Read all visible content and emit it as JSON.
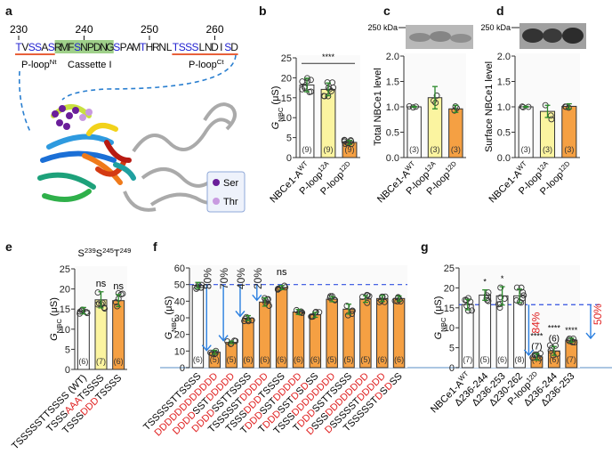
{
  "panel_labels": {
    "a": "a",
    "b": "b",
    "c": "c",
    "d": "d",
    "e": "e",
    "f": "f",
    "g": "g"
  },
  "panel_a": {
    "residue_numbers": [
      {
        "label": "230",
        "index": 0
      },
      {
        "label": "240",
        "index": 10
      },
      {
        "label": "250",
        "index": 20
      },
      {
        "label": "260",
        "index": 30
      }
    ],
    "sequence": "TVSSASRMFSNPDNGSPAMTHRNLTSSSLNDISD",
    "blue_positions": [
      0,
      2,
      3,
      5,
      9,
      15,
      19,
      24,
      25,
      26,
      27,
      32
    ],
    "cassette_range": [
      6,
      14
    ],
    "ploop_nt_range": [
      0,
      5
    ],
    "ploop_ct_range": [
      24,
      33
    ],
    "region_labels": {
      "ploop_nt": [
        {
          "t": "P-loop"
        },
        {
          "t": "Nt",
          "sup": true
        }
      ],
      "cassette": [
        {
          "t": "Cassette I"
        }
      ],
      "ploop_ct": [
        {
          "t": "P-loop"
        },
        {
          "t": "Ct",
          "sup": true
        }
      ]
    },
    "legend": [
      {
        "label": "Ser",
        "color": "#6a1e9a"
      },
      {
        "label": "Thr",
        "color": "#c89ae0"
      }
    ],
    "colors": {
      "blue": "#2020d0",
      "green_highlight": "#9fd08a",
      "underline": "#e8603a",
      "dash": "#2a7fd0"
    }
  },
  "blots": {
    "c": {
      "marker": "250 kDa"
    },
    "d": {
      "marker": "250 kDa"
    }
  },
  "colors": {
    "white_bar": "#ffffff",
    "yellow_bar": "#fbf4a0",
    "orange_bar": "#f5a043",
    "error": "#2b8a2b",
    "red_text": "#e02020",
    "arrow": "#2a7fe0",
    "dashed": "#3050e0",
    "baseline": "#8fb3d9"
  },
  "chart_data": [
    {
      "id": "b",
      "type": "bar",
      "ylabel": [
        {
          "t": "G",
          "i": true
        },
        {
          "t": "NBC",
          "sub": true
        },
        {
          "t": " (μS)"
        }
      ],
      "ylim": [
        0,
        25
      ],
      "yticks": [
        "0",
        "5",
        "10",
        "15",
        "20",
        "25"
      ],
      "categories": [
        [
          {
            "t": "NBCe1-A"
          },
          {
            "t": "WT",
            "sup": true
          }
        ],
        [
          {
            "t": "P-loop"
          },
          {
            "t": "12A",
            "sup": true
          }
        ],
        [
          {
            "t": "P-loop"
          },
          {
            "t": "12D",
            "sup": true
          }
        ]
      ],
      "values": [
        18.2,
        17.1,
        3.8
      ],
      "sd": [
        1.7,
        1.6,
        0.5
      ],
      "n": [
        "(9)",
        "(9)",
        "(9)"
      ],
      "fills": [
        "white",
        "yellow",
        "orange"
      ],
      "significance": {
        "label": "****",
        "from": 0,
        "to": 2,
        "y": 24.5
      }
    },
    {
      "id": "c",
      "type": "bar",
      "ylabel": [
        {
          "t": "Total NBCe1 level"
        }
      ],
      "ylim": [
        0,
        2
      ],
      "yticks": [
        "0.0",
        "0.5",
        "1.0",
        "1.5",
        "2.0"
      ],
      "categories": [
        [
          {
            "t": "NBCe1-A"
          },
          {
            "t": "WT",
            "sup": true
          }
        ],
        [
          {
            "t": "P-loop"
          },
          {
            "t": "12A",
            "sup": true
          }
        ],
        [
          {
            "t": "P-loop"
          },
          {
            "t": "12D",
            "sup": true
          }
        ]
      ],
      "values": [
        1.0,
        1.18,
        0.96
      ],
      "sd": [
        0.01,
        0.22,
        0.07
      ],
      "n": [
        "(3)",
        "(3)",
        "(3)"
      ],
      "fills": [
        "white",
        "yellow",
        "orange"
      ]
    },
    {
      "id": "d",
      "type": "bar",
      "ylabel": [
        {
          "t": "Surface NBCe1 level"
        }
      ],
      "ylim": [
        0,
        2
      ],
      "yticks": [
        "0.0",
        "0.5",
        "1.0",
        "1.5",
        "2.0"
      ],
      "categories": [
        [
          {
            "t": "NBCe1-A"
          },
          {
            "t": "WT",
            "sup": true
          }
        ],
        [
          {
            "t": "P-loop"
          },
          {
            "t": "12A",
            "sup": true
          }
        ],
        [
          {
            "t": "P-loop"
          },
          {
            "t": "12D",
            "sup": true
          }
        ]
      ],
      "values": [
        1.0,
        0.91,
        1.01
      ],
      "sd": [
        0.01,
        0.12,
        0.05
      ],
      "n": [
        "(3)",
        "(3)",
        "(3)"
      ],
      "fills": [
        "white",
        "yellow",
        "orange"
      ]
    },
    {
      "id": "e",
      "type": "bar",
      "title": [
        {
          "t": "S"
        },
        {
          "t": "239",
          "sup": true
        },
        {
          "t": "S"
        },
        {
          "t": "245",
          "sup": true
        },
        {
          "t": "T"
        },
        {
          "t": "249",
          "sup": true
        }
      ],
      "ylabel": [
        {
          "t": "G",
          "i": true
        },
        {
          "t": "NBC",
          "sub": true
        },
        {
          "t": " (μS)"
        }
      ],
      "ylim": [
        0,
        25
      ],
      "yticks": [
        "0",
        "5",
        "10",
        "15",
        "20",
        "25"
      ],
      "categories": [
        [
          {
            "t": "TSSSSSTTSSSS (WT)"
          }
        ],
        [
          {
            "t": "TSSS"
          },
          {
            "t": "AAA",
            "red": true
          },
          {
            "t": "TSSSS"
          }
        ],
        [
          {
            "t": "TSSS"
          },
          {
            "t": "DDD",
            "red": true
          },
          {
            "t": "TSSSS"
          }
        ]
      ],
      "values": [
        14.6,
        17.3,
        17.1
      ],
      "sd": [
        0.8,
        2.0,
        1.5
      ],
      "n": [
        "(6)",
        "(7)",
        "(6)"
      ],
      "fills": [
        "white",
        "yellow",
        "orange"
      ],
      "annotations": [
        "",
        "ns",
        "ns"
      ]
    },
    {
      "id": "f",
      "type": "bar",
      "ylabel": [
        {
          "t": "G",
          "i": true
        },
        {
          "t": "NBC",
          "sub": true
        },
        {
          "t": " (μS)"
        }
      ],
      "ylim": [
        0,
        60
      ],
      "yticks": [
        "0",
        "10",
        "20",
        "30",
        "40",
        "50",
        "60"
      ],
      "reference_line": 50,
      "categories": [
        [
          {
            "t": "TSSSSSTTSSSS"
          }
        ],
        [
          {
            "t": "DDDDDDDDDDDD",
            "red": true
          }
        ],
        [
          {
            "t": "DDDD",
            "red": true
          },
          {
            "t": "SST"
          },
          {
            "t": "DDDDD",
            "red": true
          }
        ],
        [
          {
            "t": "DDDD",
            "red": true
          },
          {
            "t": "SSTTSSSS"
          }
        ],
        [
          {
            "t": "TSSSSST"
          },
          {
            "t": "DDDDD",
            "red": true
          }
        ],
        [
          {
            "t": "TSSS"
          },
          {
            "t": "DDD",
            "red": true
          },
          {
            "t": "TSSSS"
          }
        ],
        [
          {
            "t": "T"
          },
          {
            "t": "DDD",
            "red": true
          },
          {
            "t": "SST"
          },
          {
            "t": "DDDDD",
            "red": true
          }
        ],
        [
          {
            "t": "T"
          },
          {
            "t": "DDD",
            "red": true
          },
          {
            "t": "SST"
          },
          {
            "t": "D",
            "red": true
          },
          {
            "t": "S"
          },
          {
            "t": "D",
            "red": true
          },
          {
            "t": "SS"
          }
        ],
        [
          {
            "t": "TSSS"
          },
          {
            "t": "DDDDDDDD",
            "red": true
          }
        ],
        [
          {
            "t": "T"
          },
          {
            "t": "DDD",
            "red": true
          },
          {
            "t": "SSTTSSSS"
          }
        ],
        [
          {
            "t": "D",
            "red": true
          },
          {
            "t": "SSS"
          },
          {
            "t": "DDDDDDDD",
            "red": true
          }
        ],
        [
          {
            "t": "D",
            "red": true
          },
          {
            "t": "SSSSST"
          },
          {
            "t": "DDDDD",
            "red": true
          }
        ],
        [
          {
            "t": "TSSSSST"
          },
          {
            "t": "D",
            "red": true
          },
          {
            "t": "S"
          },
          {
            "t": "D",
            "red": true
          },
          {
            "t": "SS"
          }
        ]
      ],
      "values": [
        49.5,
        9.3,
        15.2,
        29.8,
        39.5,
        48.2,
        33.5,
        31.8,
        41.2,
        35.2,
        41.3,
        41.6,
        41.6
      ],
      "sd": [
        1.8,
        1.2,
        0.8,
        1.5,
        2.5,
        1.2,
        1.5,
        1.5,
        1.5,
        3.0,
        2.0,
        1.8,
        1.5
      ],
      "n": [
        "(6)",
        "(5)",
        "(5)",
        "(6)",
        "(6)",
        "(6)",
        "(6)",
        "(6)",
        "(5)",
        "(5)",
        "(5)",
        "(6)",
        "(6)"
      ],
      "fills": [
        "white",
        "orange",
        "orange",
        "orange",
        "orange",
        "orange",
        "orange",
        "orange",
        "orange",
        "orange",
        "orange",
        "orange",
        "orange"
      ],
      "reduction_arrows": [
        {
          "bar": 1,
          "label": "80%"
        },
        {
          "bar": 2,
          "label": "70%"
        },
        {
          "bar": 3,
          "label": "40%"
        },
        {
          "bar": 4,
          "label": "20%"
        }
      ],
      "annotations": [
        "",
        "",
        "",
        "",
        "",
        "ns",
        "",
        "",
        "",
        "",
        "",
        "",
        ""
      ]
    },
    {
      "id": "g",
      "type": "bar",
      "ylabel": [
        {
          "t": "G",
          "i": true
        },
        {
          "t": "NBC",
          "sub": true
        },
        {
          "t": " (μS)"
        }
      ],
      "ylim": [
        0,
        25
      ],
      "yticks": [
        "0",
        "5",
        "10",
        "15",
        "20",
        "25"
      ],
      "reference_line": 15.8,
      "categories": [
        [
          {
            "t": "NBCe1-A"
          },
          {
            "t": "WT",
            "sup": true
          }
        ],
        [
          {
            "t": "Δ236-244"
          }
        ],
        [
          {
            "t": "Δ236-253"
          }
        ],
        [
          {
            "t": "Δ230-262"
          }
        ],
        [
          {
            "t": "P-loop"
          },
          {
            "t": "12D",
            "sup": true
          }
        ],
        [
          {
            "t": "Δ236-244"
          }
        ],
        [
          {
            "t": "Δ236-253"
          }
        ]
      ],
      "values": [
        15.8,
        18.2,
        18.0,
        18.0,
        2.7,
        4.2,
        6.9
      ],
      "sd": [
        1.3,
        1.3,
        2.3,
        1.7,
        0.8,
        1.1,
        0.5
      ],
      "n": [
        "(7)",
        "(5)",
        "(6)",
        "(8)",
        "(7)",
        "(6)",
        "(7)"
      ],
      "fills": [
        "white",
        "white",
        "white",
        "white",
        "orange",
        "orange",
        "orange"
      ],
      "annotations": [
        "",
        "*",
        "*",
        "",
        "****",
        "****",
        "****"
      ],
      "reduction_arrows": [
        {
          "bar": 4,
          "label": "84%"
        },
        {
          "bar": 6,
          "label": "50%",
          "side": "right"
        }
      ]
    }
  ]
}
